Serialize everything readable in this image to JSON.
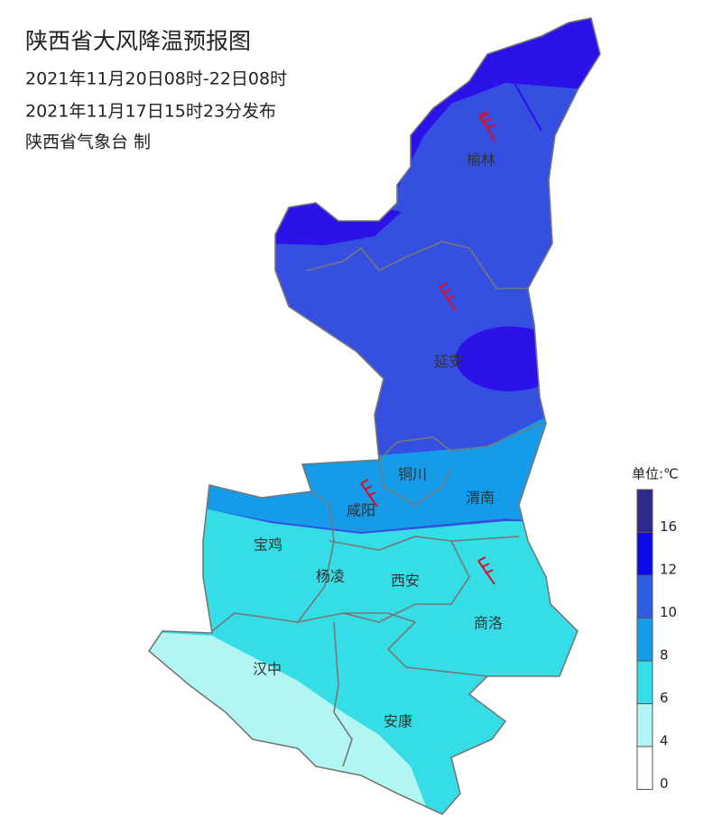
{
  "header": {
    "title": "陕西省大风降温预报图",
    "period": "2021年11月20日08时-22日08时",
    "issued": "2021年11月17日15时23分发布",
    "issuer": "陕西省气象台 制"
  },
  "cities": [
    "榆林",
    "延安",
    "铜川",
    "渭南",
    "咸阳",
    "宝鸡",
    "杨凌",
    "西安",
    "商洛",
    "汉中",
    "安康"
  ],
  "legend": {
    "unit": "单位:℃",
    "labels": [
      16,
      12,
      10,
      8,
      6,
      4,
      0
    ],
    "colors": [
      "#2e2a8c",
      "#0a0ae6",
      "#2f5de0",
      "#159be8",
      "#35dde6",
      "#b2f6f4",
      "#ffffff"
    ]
  }
}
